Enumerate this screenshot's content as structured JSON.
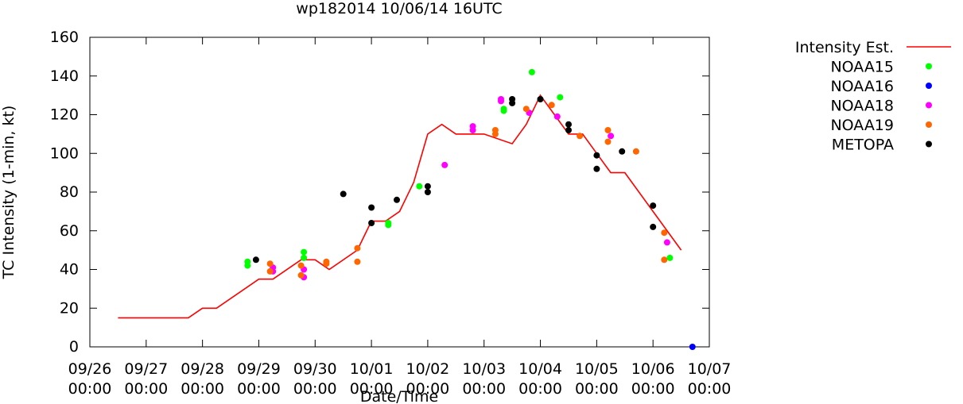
{
  "chart_data": {
    "type": "scatter",
    "title": "wp182014 10/06/14 16UTC",
    "xlabel": "Date/Time",
    "ylabel": "TC Intensity (1-min, kt)",
    "xlim": [
      0,
      11
    ],
    "ylim": [
      0,
      160
    ],
    "x_unit": "days since 09/26 00:00 UTC",
    "yticks": [
      0,
      20,
      40,
      60,
      80,
      100,
      120,
      140,
      160
    ],
    "xticks": [
      {
        "value": 0,
        "date": "09/26",
        "time": "00:00"
      },
      {
        "value": 1,
        "date": "09/27",
        "time": "00:00"
      },
      {
        "value": 2,
        "date": "09/28",
        "time": "00:00"
      },
      {
        "value": 3,
        "date": "09/29",
        "time": "00:00"
      },
      {
        "value": 4,
        "date": "09/30",
        "time": "00:00"
      },
      {
        "value": 5,
        "date": "10/01",
        "time": "00:00"
      },
      {
        "value": 6,
        "date": "10/02",
        "time": "00:00"
      },
      {
        "value": 7,
        "date": "10/03",
        "time": "00:00"
      },
      {
        "value": 8,
        "date": "10/04",
        "time": "00:00"
      },
      {
        "value": 9,
        "date": "10/05",
        "time": "00:00"
      },
      {
        "value": 10,
        "date": "10/06",
        "time": "00:00"
      },
      {
        "value": 11,
        "date": "10/07",
        "time": "00:00"
      }
    ],
    "legend_position": "right",
    "series": [
      {
        "name": "Intensity Est.",
        "kind": "line",
        "color": "#ff0000",
        "points": [
          [
            0.5,
            15
          ],
          [
            1.75,
            15
          ],
          [
            2.0,
            20
          ],
          [
            2.25,
            20
          ],
          [
            3.0,
            35
          ],
          [
            3.25,
            35
          ],
          [
            3.75,
            45
          ],
          [
            4.0,
            45
          ],
          [
            4.25,
            40
          ],
          [
            4.75,
            50
          ],
          [
            5.0,
            65
          ],
          [
            5.25,
            65
          ],
          [
            5.5,
            70
          ],
          [
            5.75,
            85
          ],
          [
            6.0,
            110
          ],
          [
            6.25,
            115
          ],
          [
            6.5,
            110
          ],
          [
            7.0,
            110
          ],
          [
            7.5,
            105
          ],
          [
            7.75,
            115
          ],
          [
            8.0,
            130
          ],
          [
            8.25,
            120
          ],
          [
            8.5,
            110
          ],
          [
            8.75,
            110
          ],
          [
            9.0,
            100
          ],
          [
            9.25,
            90
          ],
          [
            9.5,
            90
          ],
          [
            10.0,
            70
          ],
          [
            10.5,
            50
          ]
        ]
      },
      {
        "name": "NOAA15",
        "kind": "points",
        "color": "#00ff00",
        "points": [
          [
            2.8,
            44
          ],
          [
            2.8,
            42
          ],
          [
            3.8,
            49
          ],
          [
            3.8,
            46
          ],
          [
            5.3,
            64
          ],
          [
            5.3,
            63
          ],
          [
            5.85,
            83
          ],
          [
            7.35,
            123
          ],
          [
            7.35,
            122
          ],
          [
            7.85,
            142
          ],
          [
            8.35,
            129
          ],
          [
            10.3,
            46
          ]
        ]
      },
      {
        "name": "NOAA16",
        "kind": "points",
        "color": "#0000ff",
        "points": [
          [
            10.7,
            0
          ]
        ]
      },
      {
        "name": "NOAA18",
        "kind": "points",
        "color": "#ff00ff",
        "points": [
          [
            3.25,
            41
          ],
          [
            3.25,
            39
          ],
          [
            3.8,
            40
          ],
          [
            3.8,
            36
          ],
          [
            6.3,
            94
          ],
          [
            6.8,
            114
          ],
          [
            6.8,
            112
          ],
          [
            7.3,
            128
          ],
          [
            7.3,
            127
          ],
          [
            7.8,
            121
          ],
          [
            8.3,
            119
          ],
          [
            9.25,
            109
          ],
          [
            10.25,
            54
          ]
        ]
      },
      {
        "name": "NOAA19",
        "kind": "points",
        "color": "#ff6600",
        "points": [
          [
            3.2,
            43
          ],
          [
            3.2,
            39
          ],
          [
            3.75,
            42
          ],
          [
            3.75,
            37
          ],
          [
            4.2,
            44
          ],
          [
            4.2,
            43
          ],
          [
            4.75,
            51
          ],
          [
            4.75,
            44
          ],
          [
            7.2,
            112
          ],
          [
            7.2,
            110
          ],
          [
            7.75,
            123
          ],
          [
            8.2,
            125
          ],
          [
            8.7,
            109
          ],
          [
            9.2,
            112
          ],
          [
            9.2,
            106
          ],
          [
            9.7,
            101
          ],
          [
            10.2,
            59
          ],
          [
            10.2,
            45
          ]
        ]
      },
      {
        "name": "METOPA",
        "kind": "points",
        "color": "#000000",
        "points": [
          [
            2.95,
            45
          ],
          [
            4.5,
            79
          ],
          [
            5.0,
            72
          ],
          [
            5.0,
            64
          ],
          [
            5.45,
            76
          ],
          [
            6.0,
            83
          ],
          [
            6.0,
            80
          ],
          [
            7.5,
            128
          ],
          [
            7.5,
            126
          ],
          [
            8.0,
            128
          ],
          [
            8.5,
            115
          ],
          [
            8.5,
            112
          ],
          [
            9.0,
            99
          ],
          [
            9.0,
            92
          ],
          [
            9.45,
            101
          ],
          [
            10.0,
            73
          ],
          [
            10.0,
            62
          ]
        ]
      }
    ]
  }
}
